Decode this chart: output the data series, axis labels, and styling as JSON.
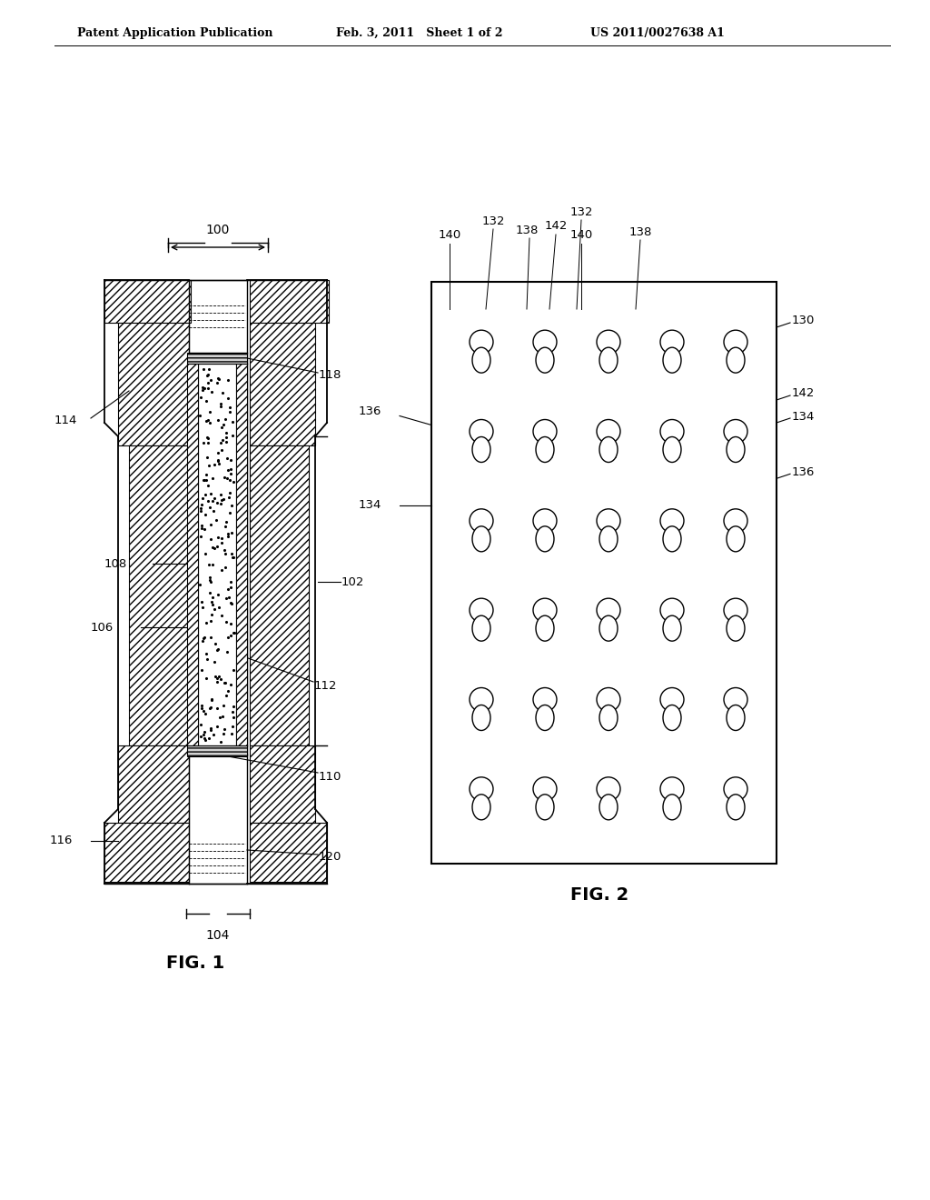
{
  "header_left": "Patent Application Publication",
  "header_mid": "Feb. 3, 2011   Sheet 1 of 2",
  "header_right": "US 2011/0027638 A1",
  "fig1_label": "FIG. 1",
  "fig2_label": "FIG. 2",
  "bg_color": "#ffffff",
  "line_color": "#000000",
  "hatch_color": "#000000",
  "label_100": "100",
  "label_102": "102",
  "label_104": "104",
  "label_106": "106",
  "label_108": "108",
  "label_110": "110",
  "label_112": "112",
  "label_114": "114",
  "label_116": "116",
  "label_118": "118",
  "label_120": "120",
  "label_130": "130",
  "label_132": "132",
  "label_134": "134",
  "label_136": "136",
  "label_138": "138",
  "label_140": "140",
  "label_142": "142"
}
